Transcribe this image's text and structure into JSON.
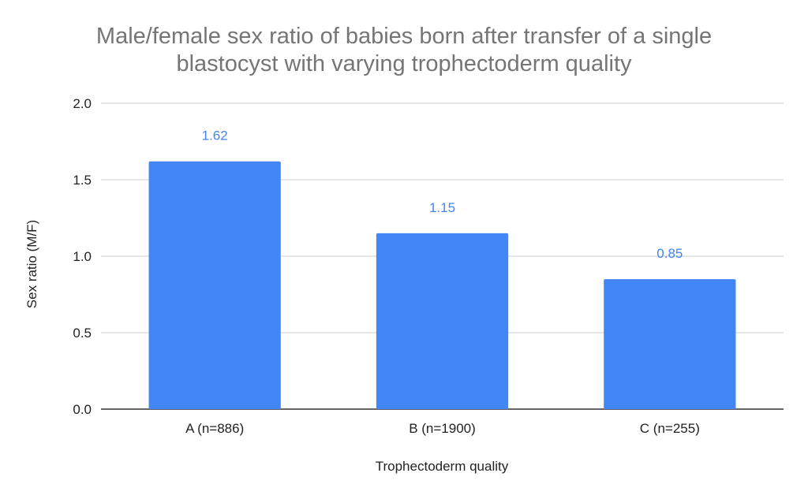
{
  "chart_data": {
    "type": "bar",
    "title_lines": [
      "Male/female sex ratio of babies born after transfer of a single",
      "blastocyst with varying trophectoderm quality"
    ],
    "xlabel": "Trophectoderm quality",
    "ylabel": "Sex ratio (M/F)",
    "categories": [
      "A (n=886)",
      "B (n=1900)",
      "C (n=255)"
    ],
    "values": [
      1.62,
      1.15,
      0.85
    ],
    "data_labels": [
      "1.62",
      "1.15",
      "0.85"
    ],
    "ylim": [
      0,
      2.0
    ],
    "yticks": [
      "0.0",
      "0.5",
      "1.0",
      "1.5",
      "2.0"
    ],
    "grid": true,
    "legend": "none",
    "bar_color": "#4285F4",
    "label_color": "#4285F4",
    "grid_color": "#cccccc",
    "axis_color": "#333333"
  }
}
